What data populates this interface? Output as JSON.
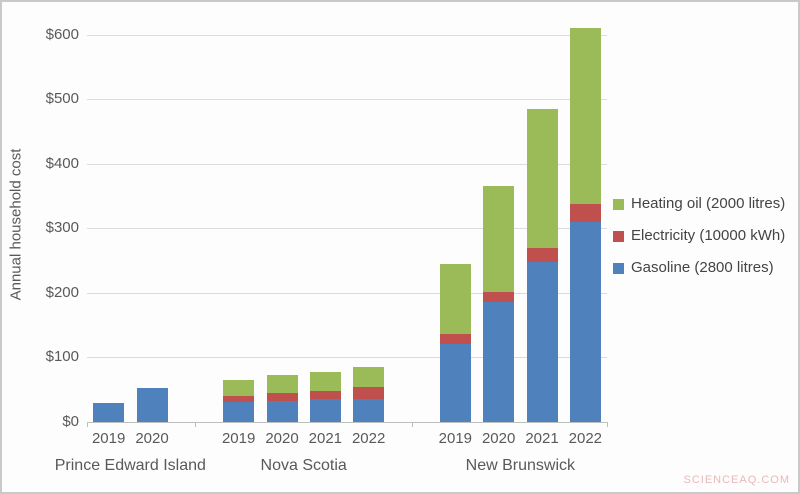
{
  "watermark": "SCIENCEAQ.COM",
  "chart_data": {
    "type": "bar",
    "stacked": true,
    "title": "",
    "xlabel": "",
    "ylabel": "Annual household cost",
    "ylim": [
      0,
      600
    ],
    "ytick_step": 100,
    "ytick_labels": [
      "$0",
      "$100",
      "$200",
      "$300",
      "$400",
      "$500",
      "$600"
    ],
    "grid": true,
    "legend_position": "right",
    "stack_order": [
      "gasoline",
      "electricity",
      "heating_oil"
    ],
    "legend": [
      {
        "key": "heating_oil",
        "label": "Heating oil (2000 litres)",
        "color": "#9BBB59"
      },
      {
        "key": "electricity",
        "label": "Electricity (10000 kWh)",
        "color": "#C0504D"
      },
      {
        "key": "gasoline",
        "label": "Gasoline (2800 litres)",
        "color": "#4F81BD"
      }
    ],
    "groups": [
      {
        "label": "Prince Edward Island",
        "bars": [
          {
            "year": "2019",
            "gasoline": 30,
            "electricity": 0,
            "heating_oil": 0
          },
          {
            "year": "2020",
            "gasoline": 52,
            "electricity": 0,
            "heating_oil": 0
          }
        ]
      },
      {
        "label": "Nova Scotia",
        "bars": [
          {
            "year": "2019",
            "gasoline": 31,
            "electricity": 9,
            "heating_oil": 25
          },
          {
            "year": "2020",
            "gasoline": 33,
            "electricity": 12,
            "heating_oil": 28
          },
          {
            "year": "2021",
            "gasoline": 35,
            "electricity": 13,
            "heating_oil": 30
          },
          {
            "year": "2022",
            "gasoline": 36,
            "electricity": 18,
            "heating_oil": 31
          }
        ]
      },
      {
        "label": "New Brunswick",
        "bars": [
          {
            "year": "2019",
            "gasoline": 121,
            "electricity": 16,
            "heating_oil": 108
          },
          {
            "year": "2020",
            "gasoline": 186,
            "electricity": 16,
            "heating_oil": 164
          },
          {
            "year": "2021",
            "gasoline": 248,
            "electricity": 22,
            "heating_oil": 215
          },
          {
            "year": "2022",
            "gasoline": 310,
            "electricity": 27,
            "heating_oil": 273
          }
        ]
      }
    ]
  }
}
